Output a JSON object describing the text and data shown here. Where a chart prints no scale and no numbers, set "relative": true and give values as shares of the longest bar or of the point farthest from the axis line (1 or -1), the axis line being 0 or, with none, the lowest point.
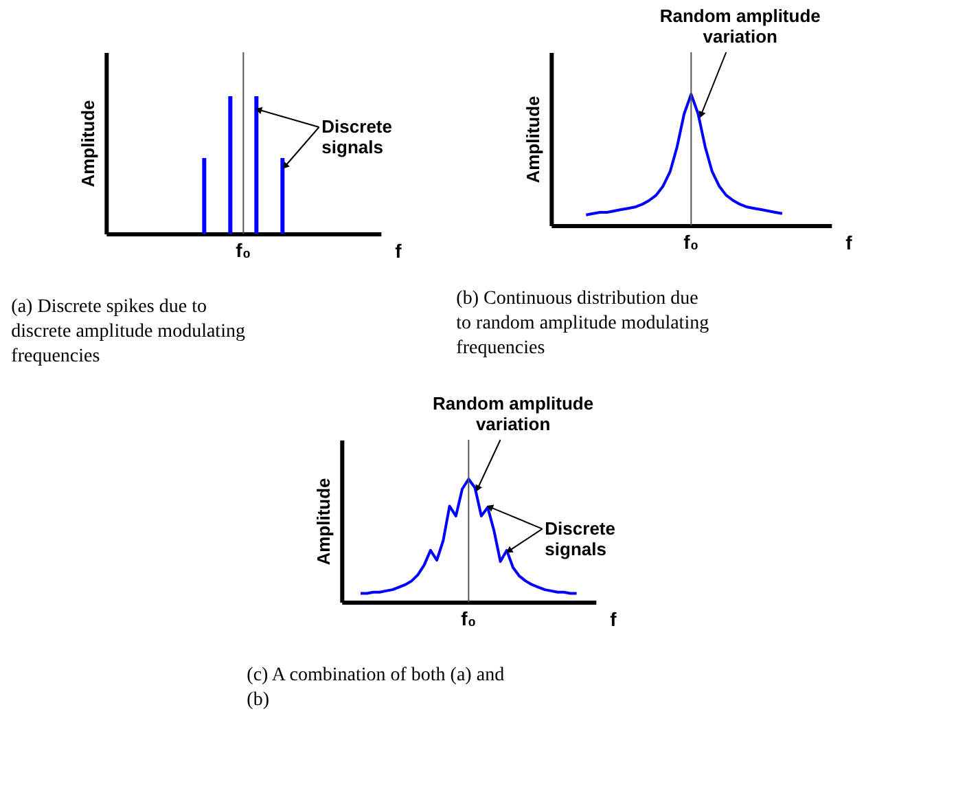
{
  "chart_data": [
    {
      "type": "bar",
      "relative": true,
      "xlabel": "f",
      "ylabel": "Amplitude",
      "categories": [
        null,
        null,
        null,
        null
      ],
      "series": [
        {
          "color": "#0000ff",
          "values": [
            0.55,
            1,
            1,
            0.55
          ]
        }
      ],
      "annotations": [
        "f₀",
        "Discrete signals",
        "(a) Discrete spikes due to discrete amplitude modulating frequencies"
      ]
    },
    {
      "type": "line",
      "relative": true,
      "xlabel": "f",
      "ylabel": "Amplitude",
      "marker": "none",
      "categories": [
        null,
        null,
        null,
        null,
        null,
        null,
        null,
        null,
        null,
        null,
        null,
        null,
        null,
        null,
        null,
        null,
        null,
        null,
        null,
        null,
        null,
        null,
        null,
        null,
        null,
        null,
        null,
        null,
        null
      ],
      "series": [
        {
          "color": "#0000ff",
          "values": [
            0.08,
            0.09,
            0.1,
            0.1,
            0.11,
            0.12,
            0.13,
            0.14,
            0.16,
            0.19,
            0.23,
            0.3,
            0.41,
            0.6,
            0.85,
            1,
            0.85,
            0.6,
            0.41,
            0.3,
            0.23,
            0.19,
            0.16,
            0.14,
            0.13,
            0.12,
            0.11,
            0.1,
            0.09
          ]
        }
      ],
      "annotations": [
        "f₀",
        "Random amplitude variation",
        "(b) Continuous distribution due to random amplitude modulating frequencies"
      ]
    },
    {
      "type": "line",
      "relative": true,
      "xlabel": "f",
      "ylabel": "Amplitude",
      "marker": "none",
      "categories": [
        null,
        null,
        null,
        null,
        null,
        null,
        null,
        null,
        null,
        null,
        null,
        null,
        null,
        null,
        null,
        null,
        null,
        null,
        null,
        null,
        null,
        null,
        null,
        null,
        null,
        null,
        null,
        null,
        null,
        null,
        null,
        null,
        null,
        null,
        null
      ],
      "series": [
        {
          "color": "#0000ff",
          "values": [
            0.07,
            0.07,
            0.08,
            0.08,
            0.09,
            0.1,
            0.12,
            0.14,
            0.17,
            0.22,
            0.3,
            0.42,
            0.34,
            0.5,
            0.78,
            0.7,
            0.92,
            1,
            0.93,
            0.7,
            0.77,
            0.58,
            0.33,
            0.42,
            0.28,
            0.21,
            0.17,
            0.14,
            0.12,
            0.1,
            0.09,
            0.08,
            0.08,
            0.07,
            0.07
          ]
        }
      ],
      "annotations": [
        "f₀",
        "Random amplitude variation",
        "Discrete signals",
        "(c) A combination of both (a) and (b)"
      ]
    }
  ]
}
